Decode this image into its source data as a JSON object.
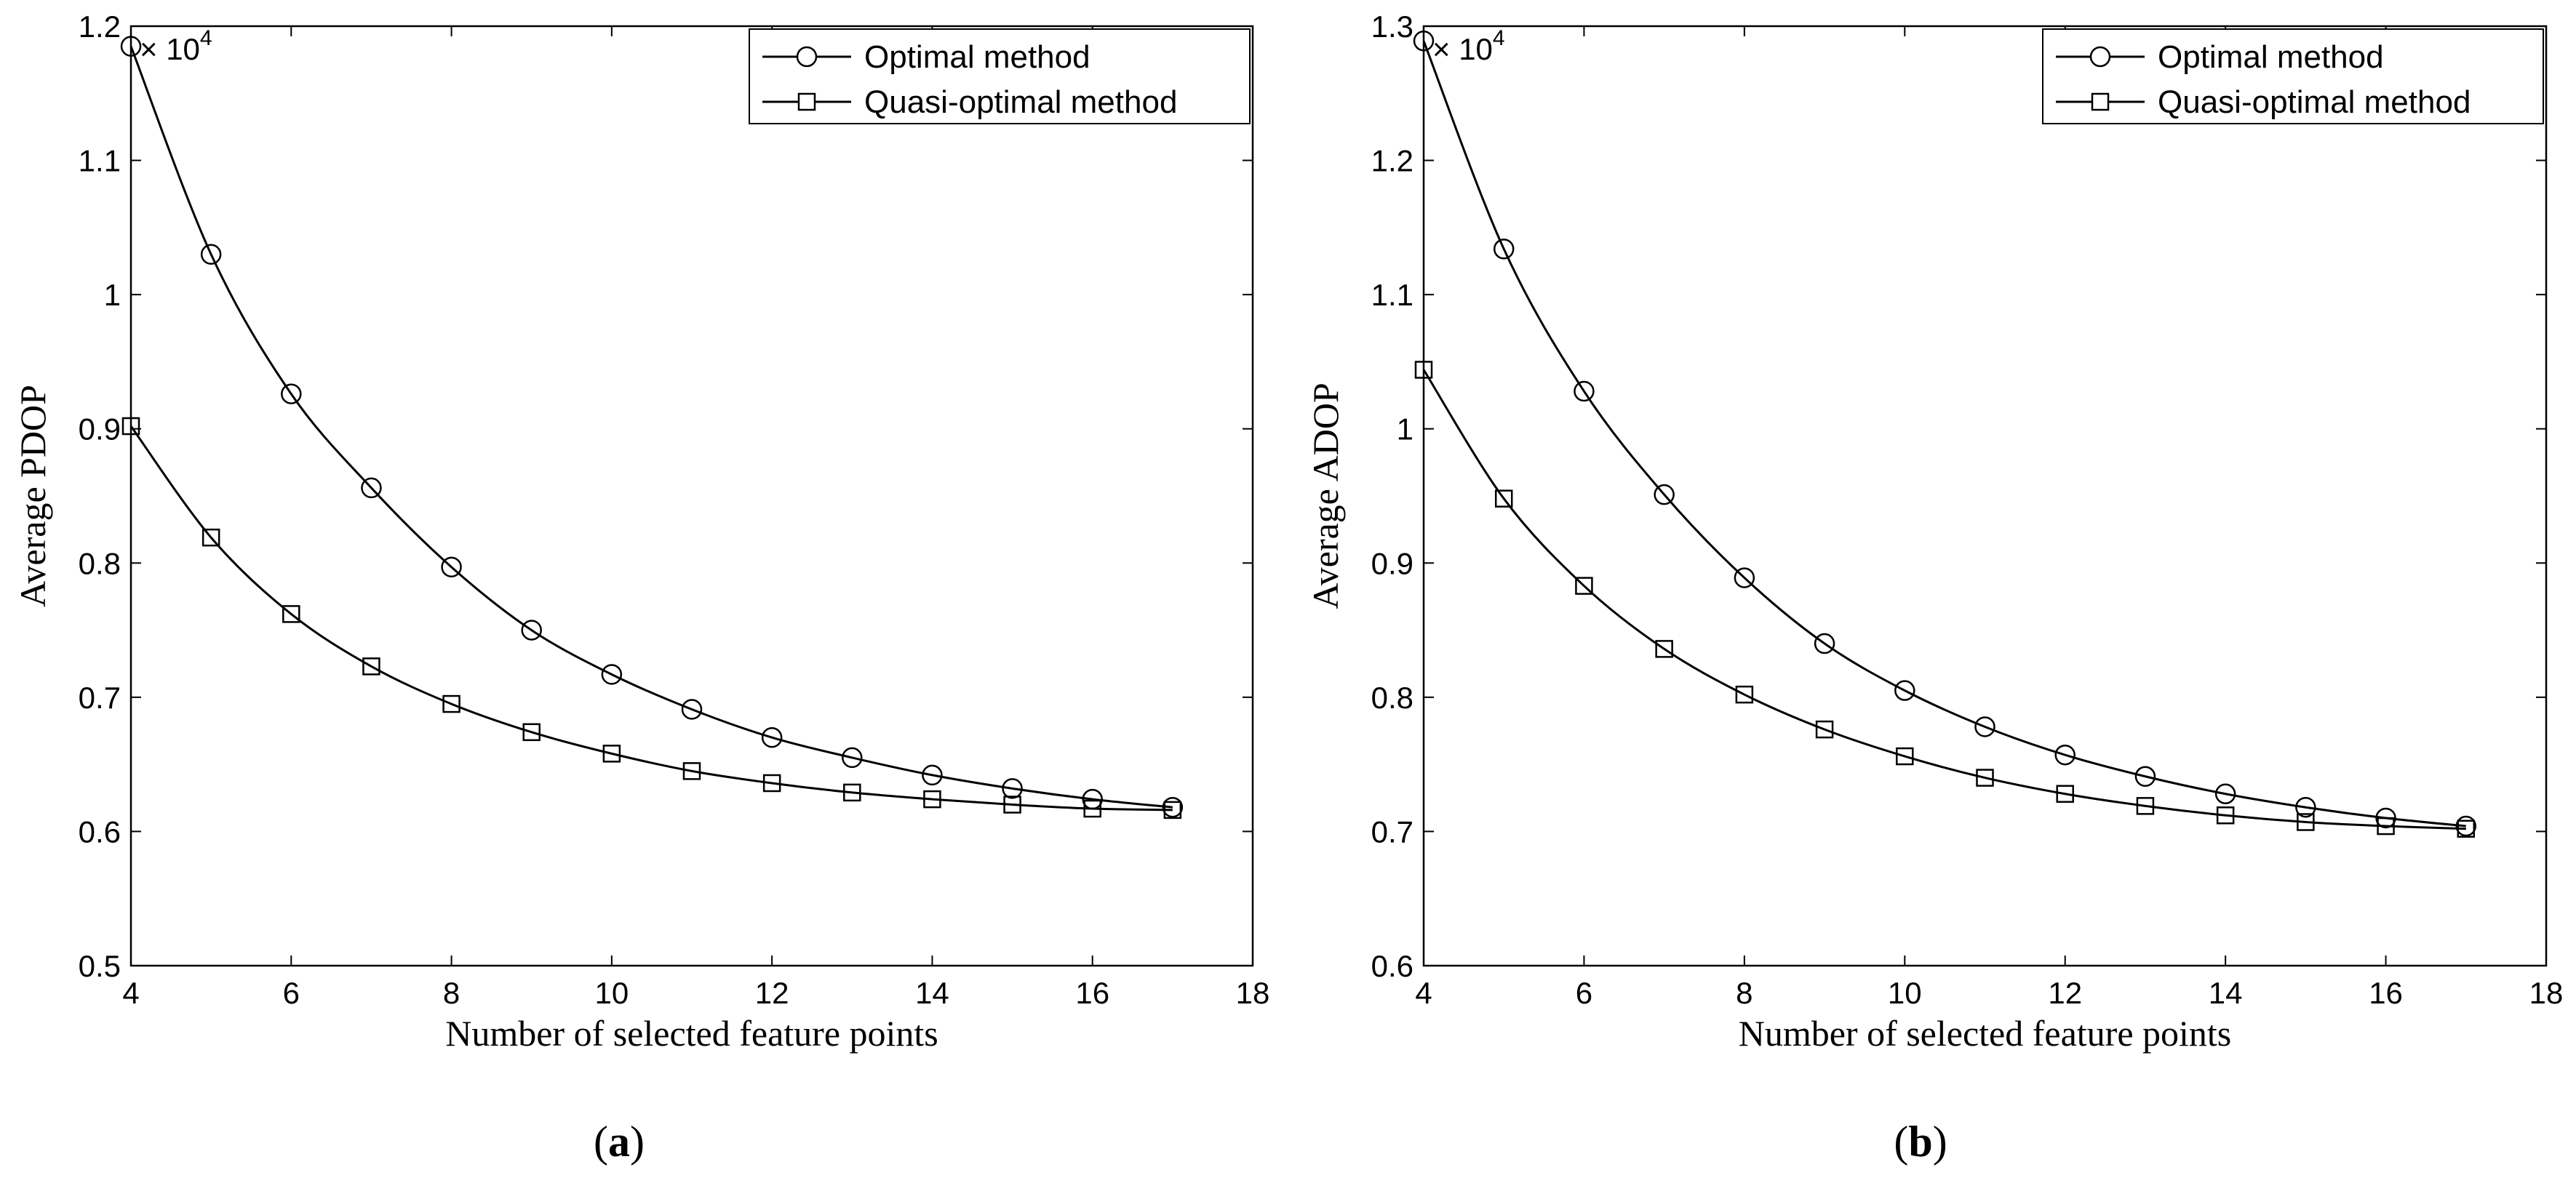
{
  "colors": {
    "line": "#000000",
    "background": "#ffffff"
  },
  "chart_data": [
    {
      "type": "line",
      "panel_label": "(a)",
      "panel_letter": "a",
      "xlabel": "Number of selected feature points",
      "ylabel": "Average PDOP",
      "y_multiplier": "× 10",
      "y_exponent": "4",
      "xlim": [
        4,
        18
      ],
      "ylim": [
        0.5,
        1.2
      ],
      "x_ticks": [
        4,
        6,
        8,
        10,
        12,
        14,
        16,
        18
      ],
      "y_ticks": [
        0.5,
        0.6,
        0.7,
        0.8,
        0.9,
        1,
        1.1,
        1.2
      ],
      "grid": false,
      "legend_position": "top-right",
      "x": [
        4,
        5,
        6,
        7,
        8,
        9,
        10,
        11,
        12,
        13,
        14,
        15,
        16,
        17
      ],
      "series": [
        {
          "name": "Optimal method",
          "marker": "circle",
          "values": [
            1.185,
            1.03,
            0.926,
            0.856,
            0.797,
            0.75,
            0.717,
            0.691,
            0.67,
            0.655,
            0.642,
            0.632,
            0.624,
            0.618
          ]
        },
        {
          "name": "Quasi-optimal method",
          "marker": "square",
          "values": [
            0.902,
            0.819,
            0.762,
            0.723,
            0.695,
            0.674,
            0.658,
            0.645,
            0.636,
            0.629,
            0.624,
            0.62,
            0.617,
            0.616
          ]
        }
      ]
    },
    {
      "type": "line",
      "panel_label": "(b)",
      "panel_letter": "b",
      "xlabel": "Number of selected feature points",
      "ylabel": "Average ADOP",
      "y_multiplier": "× 10",
      "y_exponent": "4",
      "xlim": [
        4,
        18
      ],
      "ylim": [
        0.6,
        1.3
      ],
      "x_ticks": [
        4,
        6,
        8,
        10,
        12,
        14,
        16,
        18
      ],
      "y_ticks": [
        0.6,
        0.7,
        0.8,
        0.9,
        1,
        1.1,
        1.2,
        1.3
      ],
      "grid": false,
      "legend_position": "top-right",
      "x": [
        4,
        5,
        6,
        7,
        8,
        9,
        10,
        11,
        12,
        13,
        14,
        15,
        16,
        17
      ],
      "series": [
        {
          "name": "Optimal method",
          "marker": "circle",
          "values": [
            1.289,
            1.134,
            1.028,
            0.951,
            0.889,
            0.84,
            0.805,
            0.778,
            0.757,
            0.741,
            0.728,
            0.718,
            0.71,
            0.704
          ]
        },
        {
          "name": "Quasi-optimal method",
          "marker": "square",
          "values": [
            1.044,
            0.948,
            0.883,
            0.836,
            0.802,
            0.776,
            0.756,
            0.74,
            0.728,
            0.719,
            0.712,
            0.707,
            0.704,
            0.702
          ]
        }
      ]
    }
  ]
}
